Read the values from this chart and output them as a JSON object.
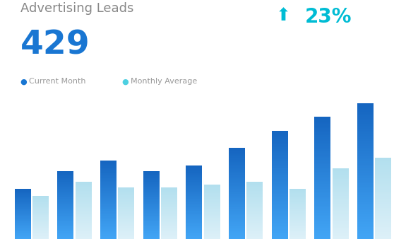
{
  "title": "Advertising Leads",
  "big_number": "429",
  "percent_change": "23%",
  "legend_current": "Current Month",
  "legend_average": "Monthly Average",
  "current_month_values": [
    0.37,
    0.5,
    0.58,
    0.5,
    0.54,
    0.67,
    0.8,
    0.9,
    1.0
  ],
  "monthly_avg_values": [
    0.32,
    0.42,
    0.38,
    0.38,
    0.4,
    0.42,
    0.37,
    0.52,
    0.6
  ],
  "current_month_color_top": "#1565c0",
  "current_month_color_bottom": "#42a5f5",
  "monthly_avg_color_top": "#b2dfee",
  "monthly_avg_color_bottom": "#ddf0f8",
  "arrow_color": "#00bcd4",
  "percent_color": "#00bcd4",
  "title_color": "#888888",
  "big_number_color": "#1976d2",
  "legend_dot_current": "#1976d2",
  "legend_dot_average": "#4dd0e1",
  "background_color": "#ffffff",
  "bar_width": 0.38,
  "bar_gap": 0.04
}
